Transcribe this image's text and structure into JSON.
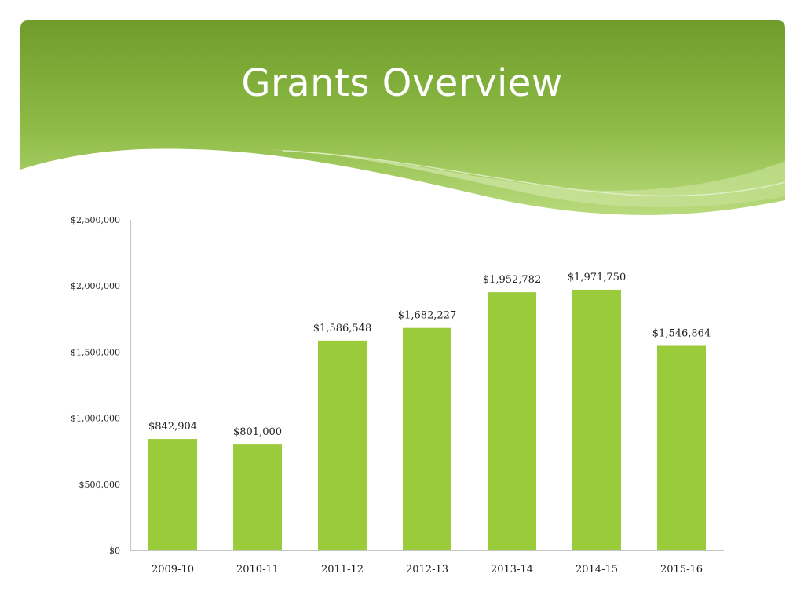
{
  "slide": {
    "title": "Grants Overview"
  },
  "colors": {
    "banner_dark": "#74a02e",
    "banner_light": "#b6d878",
    "bar": "#9acb3a",
    "axis": "#8c8c8c"
  },
  "chart_data": {
    "type": "bar",
    "title": "",
    "xlabel": "",
    "ylabel": "",
    "ylim": [
      0,
      2500000
    ],
    "yticks": [
      0,
      500000,
      1000000,
      1500000,
      2000000,
      2500000
    ],
    "ytick_labels": [
      "$0",
      "$500,000",
      "$1,000,000",
      "$1,500,000",
      "$2,000,000",
      "$2,500,000"
    ],
    "categories": [
      "2009-10",
      "2010-11",
      "2011-12",
      "2012-13",
      "2013-14",
      "2014-15",
      "2015-16"
    ],
    "values": [
      842904,
      801000,
      1586548,
      1682227,
      1952782,
      1971750,
      1546864
    ],
    "data_labels": [
      "$842,904",
      "$801,000",
      "$1,586,548",
      "$1,682,227",
      "$1,952,782",
      "$1,971,750",
      "$1,546,864"
    ],
    "grid": false,
    "legend": "none"
  }
}
